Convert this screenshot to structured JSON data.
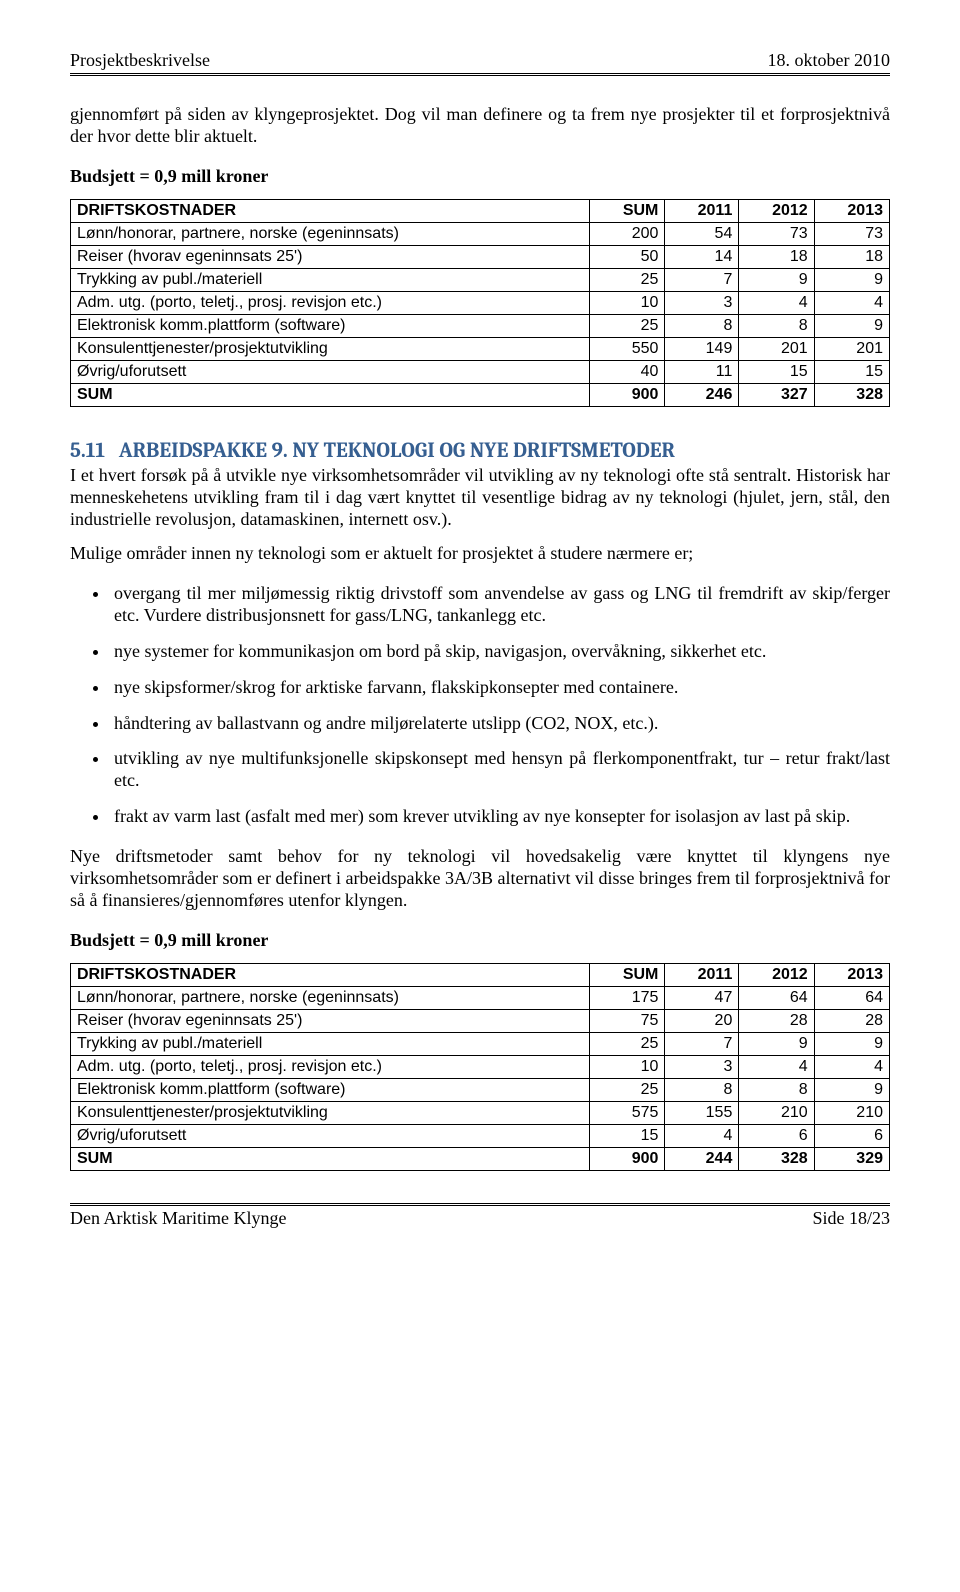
{
  "header": {
    "left": "Prosjektbeskrivelse",
    "right": "18. oktober 2010"
  },
  "intro_para": "gjennomført på siden av klyngeprosjektet. Dog vil man definere og ta frem nye prosjekter til et forprosjektnivå der hvor dette blir aktuelt.",
  "budget_label": "Budsjett = 0,9 mill kroner",
  "table_headers": [
    "DRIFTSKOSTNADER",
    "SUM",
    "2011",
    "2012",
    "2013"
  ],
  "table1": {
    "rows": [
      [
        "Lønn/honorar, partnere, norske  (egeninnsats)",
        "200",
        "54",
        "73",
        "73"
      ],
      [
        "Reiser (hvorav egeninnsats 25')",
        "50",
        "14",
        "18",
        "18"
      ],
      [
        "Trykking av publ./materiell",
        "25",
        "7",
        "9",
        "9"
      ],
      [
        "Adm. utg. (porto, teletj., prosj. revisjon etc.)",
        "10",
        "3",
        "4",
        "4"
      ],
      [
        "Elektronisk komm.plattform (software)",
        "25",
        "8",
        "8",
        "9"
      ],
      [
        "Konsulenttjenester/prosjektutvikling",
        "550",
        "149",
        "201",
        "201"
      ],
      [
        "Øvrig/uforutsett",
        "40",
        "11",
        "15",
        "15"
      ]
    ],
    "sum": [
      "SUM",
      "900",
      "246",
      "327",
      "328"
    ]
  },
  "section": {
    "number": "5.11",
    "title_prefix": "ARBEIDSPAKKE 9.",
    "title_rest": "NY TEKNOLOGI OG NYE DRIFTSMETODER"
  },
  "para1": "I et hvert forsøk på å utvikle nye virksomhetsområder vil utvikling av ny teknologi ofte stå sentralt. Historisk har menneskehetens utvikling fram til i dag vært knyttet til vesentlige bidrag av ny teknologi (hjulet, jern, stål, den industrielle revolusjon, datamaskinen, internett osv.).",
  "para2": "Mulige områder innen ny teknologi som er aktuelt for prosjektet å studere nærmere er;",
  "bullets": [
    "overgang til mer miljømessig riktig drivstoff som anvendelse av gass og LNG til fremdrift av skip/ferger etc. Vurdere distribusjonsnett for gass/LNG, tankanlegg etc.",
    "nye systemer for kommunikasjon om bord på skip, navigasjon, overvåkning, sikkerhet etc.",
    "nye skipsformer/skrog for arktiske farvann, flakskipkonsepter med containere.",
    "håndtering av ballastvann og andre miljørelaterte utslipp (CO2, NOX, etc.).",
    "utvikling av nye multifunksjonelle skipskonsept med hensyn på flerkomponentfrakt, tur – retur frakt/last etc.",
    "frakt av varm last (asfalt med mer) som krever utvikling av nye konsepter for isolasjon av last på skip."
  ],
  "para3": "Nye driftsmetoder samt behov for ny teknologi vil hovedsakelig være knyttet til klyngens nye virksomhetsområder som er definert i arbeidspakke 3A/3B alternativt vil disse bringes frem til forprosjektnivå for så å finansieres/gjennomføres utenfor klyngen.",
  "table2": {
    "rows": [
      [
        "Lønn/honorar, partnere, norske  (egeninnsats)",
        "175",
        "47",
        "64",
        "64"
      ],
      [
        "Reiser (hvorav egeninnsats 25')",
        "75",
        "20",
        "28",
        "28"
      ],
      [
        "Trykking av publ./materiell",
        "25",
        "7",
        "9",
        "9"
      ],
      [
        "Adm. utg. (porto, teletj., prosj. revisjon etc.)",
        "10",
        "3",
        "4",
        "4"
      ],
      [
        "Elektronisk komm.plattform (software)",
        "25",
        "8",
        "8",
        "9"
      ],
      [
        "Konsulenttjenester/prosjektutvikling",
        "575",
        "155",
        "210",
        "210"
      ],
      [
        "Øvrig/uforutsett",
        "15",
        "4",
        "6",
        "6"
      ]
    ],
    "sum": [
      "SUM",
      "900",
      "244",
      "328",
      "329"
    ]
  },
  "footer": {
    "left": "Den Arktisk Maritime Klynge",
    "right": "Side 18/23"
  },
  "colors": {
    "heading_color": "#365f91",
    "text_color": "#000000",
    "background": "#ffffff",
    "border_color": "#000000"
  },
  "column_widths_pct": [
    48,
    13,
    13,
    13,
    13
  ]
}
